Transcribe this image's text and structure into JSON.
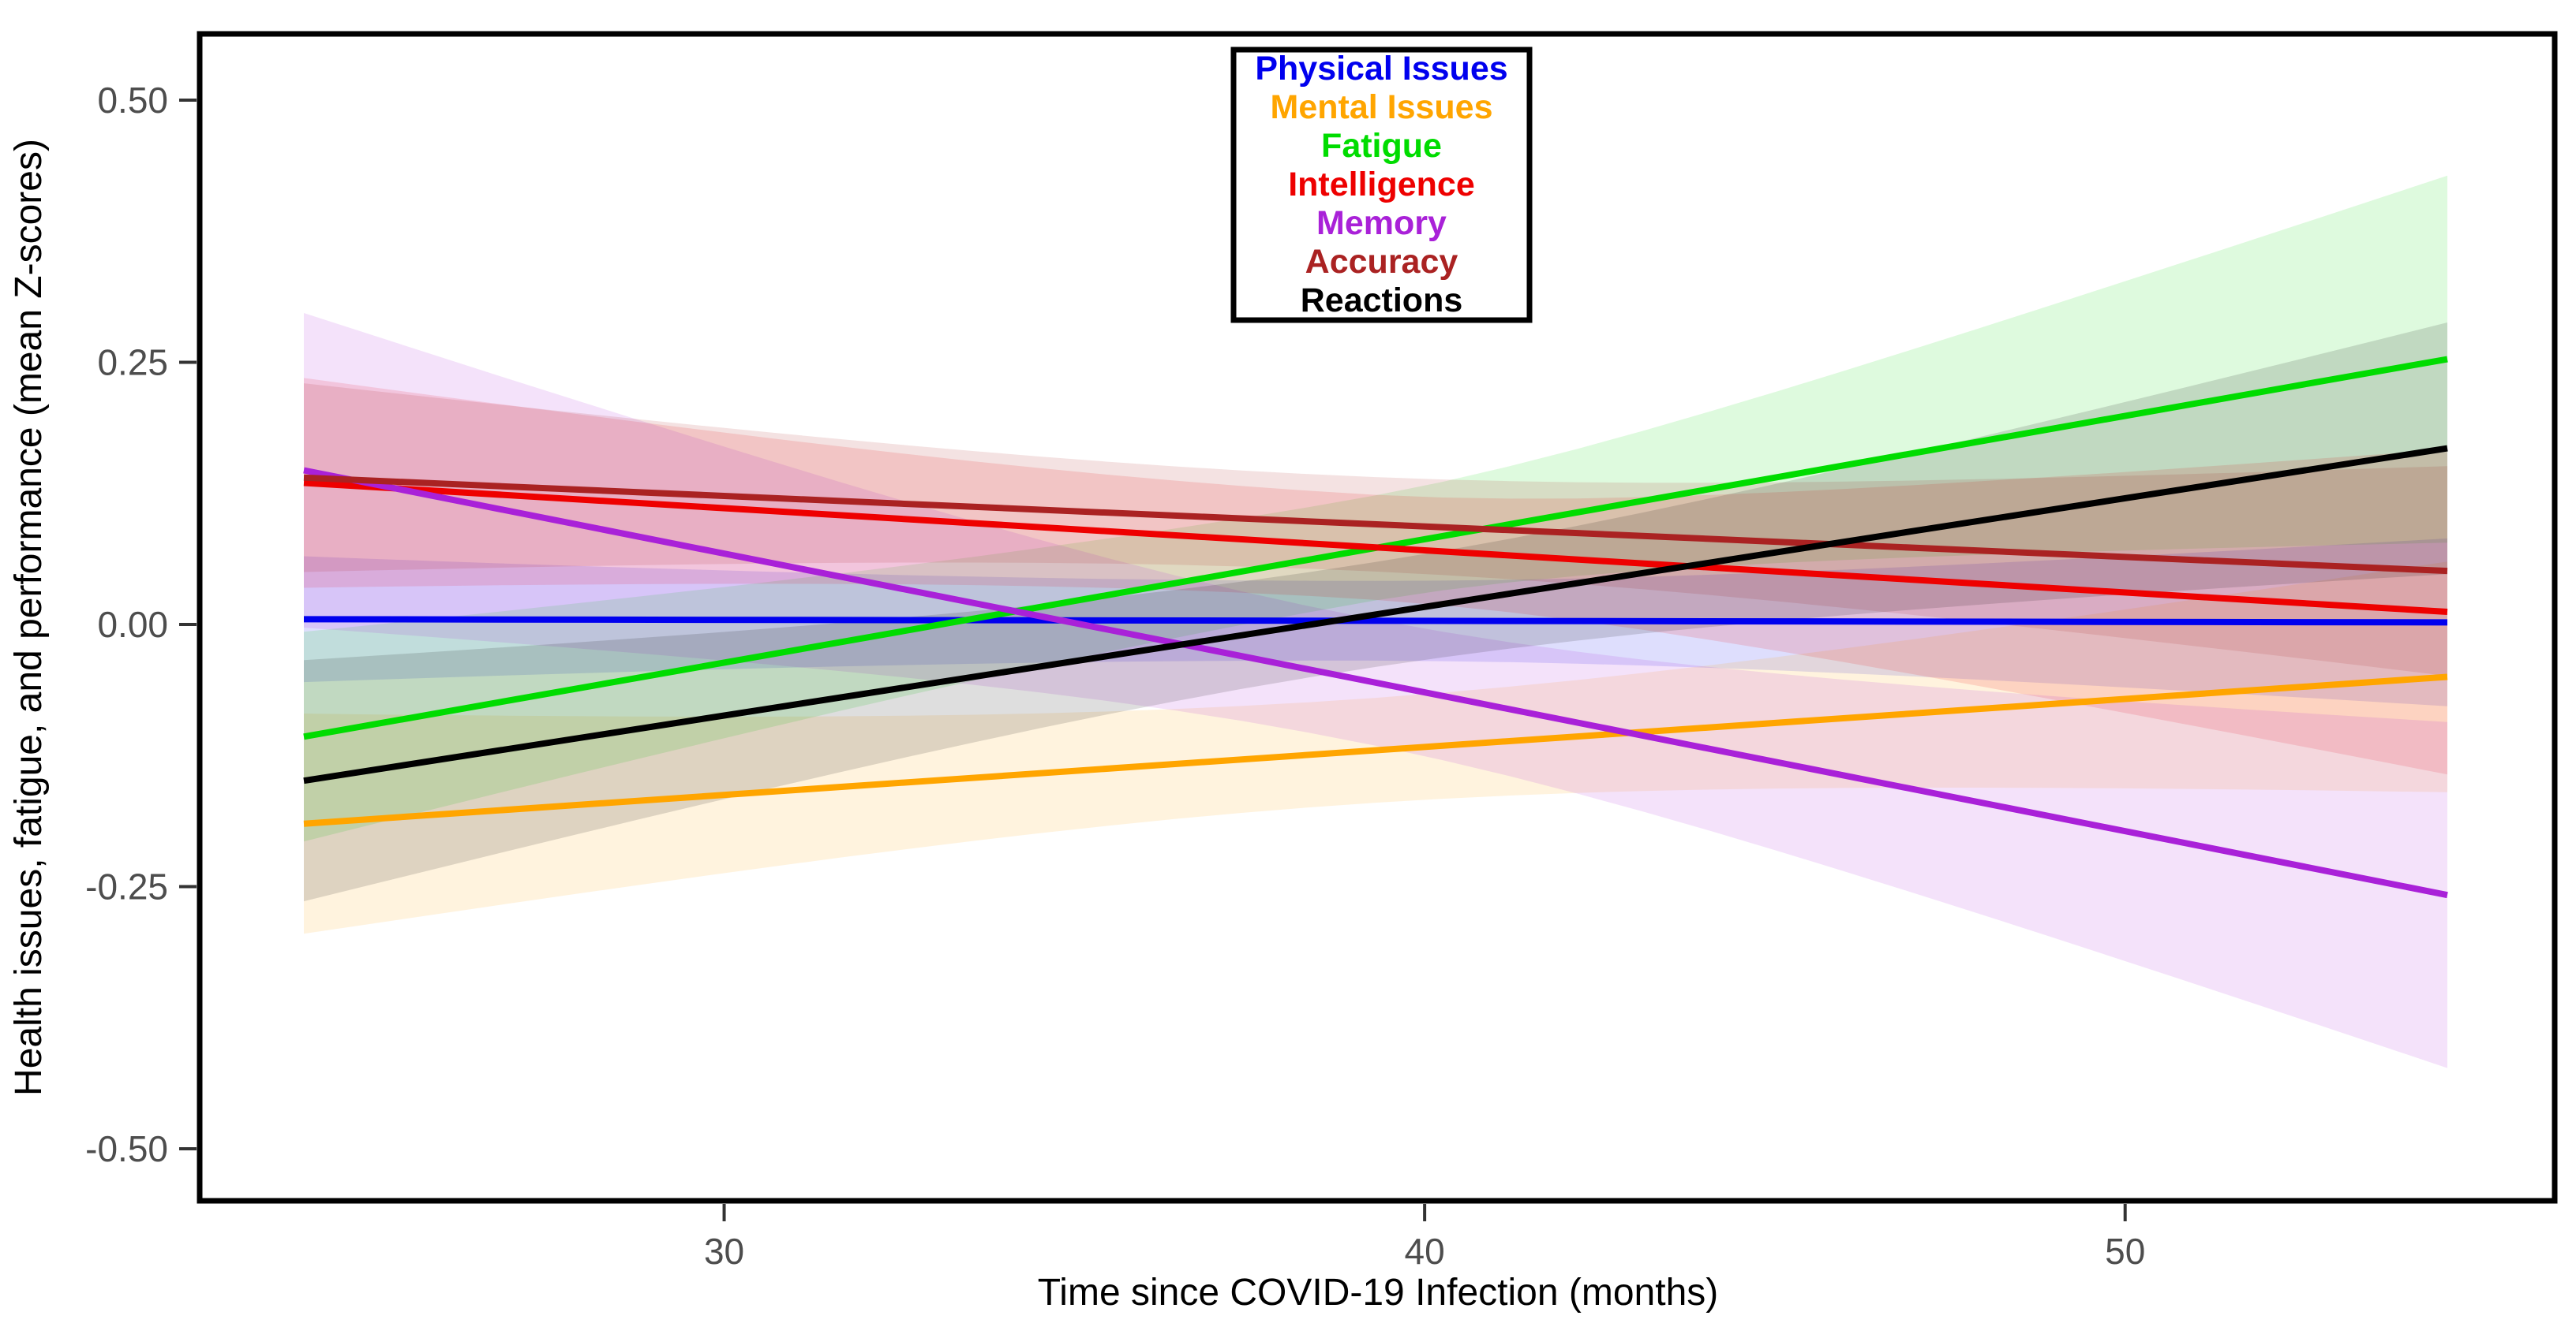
{
  "chart_data": {
    "type": "line",
    "title": "",
    "xlabel": "Time since COVID-19 Infection (months)",
    "ylabel": "Health issues, fatigue, and performance (mean Z-scores)",
    "x_range": [
      24,
      54.6
    ],
    "xlim": [
      22.5,
      56.1
    ],
    "ylim": [
      -0.55,
      0.56
    ],
    "grid": "off",
    "background": "#ffffff",
    "x_ticks": [
      {
        "value": 30,
        "label": "30"
      },
      {
        "value": 40,
        "label": "40"
      },
      {
        "value": 50,
        "label": "50"
      }
    ],
    "y_ticks": [
      {
        "value": 0.5,
        "label": "0.50"
      },
      {
        "value": 0.25,
        "label": "0.25"
      },
      {
        "value": 0.0,
        "label": "0.00"
      },
      {
        "value": -0.25,
        "label": "-0.25"
      },
      {
        "value": -0.5,
        "label": "-0.50"
      }
    ],
    "ci_pivot_month": 39,
    "ribbon_opacity": 0.13,
    "series": [
      {
        "name": "Physical Issues",
        "color": "#0000ee",
        "y_start": 0.005,
        "y_end": 0.002,
        "ci_start": 0.06,
        "ci_mid": 0.038,
        "ci_end": 0.08
      },
      {
        "name": "Mental Issues",
        "color": "#ffa500",
        "y_start": -0.19,
        "y_end": -0.05,
        "ci_start": 0.105,
        "ci_mid": 0.05,
        "ci_end": 0.11
      },
      {
        "name": "Fatigue",
        "color": "#00dc00",
        "y_start": -0.107,
        "y_end": 0.253,
        "ci_start": 0.1,
        "ci_mid": 0.05,
        "ci_end": 0.175
      },
      {
        "name": "Intelligence",
        "color": "#ee0000",
        "y_start": 0.135,
        "y_end": 0.012,
        "ci_start": 0.1,
        "ci_mid": 0.05,
        "ci_end": 0.155
      },
      {
        "name": "Memory",
        "color": "#a921d8",
        "y_start": 0.147,
        "y_end": -0.258,
        "ci_start": 0.15,
        "ci_mid": 0.06,
        "ci_end": 0.165
      },
      {
        "name": "Accuracy",
        "color": "#aa2222",
        "y_start": 0.14,
        "y_end": 0.051,
        "ci_start": 0.09,
        "ci_mid": 0.045,
        "ci_end": 0.1
      },
      {
        "name": "Reactions",
        "color": "#000000",
        "y_start": -0.149,
        "y_end": 0.168,
        "ci_start": 0.115,
        "ci_mid": 0.05,
        "ci_end": 0.12
      }
    ],
    "legend": {
      "position": "top-center",
      "entries": [
        "Physical Issues",
        "Mental Issues",
        "Fatigue",
        "Intelligence",
        "Memory",
        "Accuracy",
        "Reactions"
      ]
    }
  }
}
